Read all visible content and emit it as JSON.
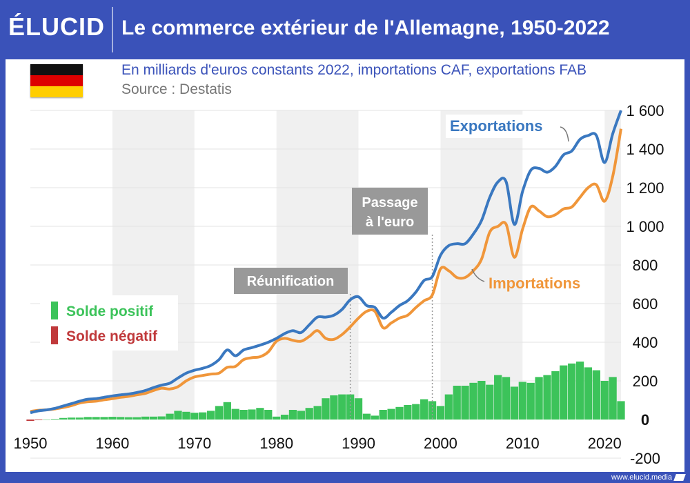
{
  "header": {
    "logo": "ÉLUCID",
    "title": "Le commerce extérieur de l'Allemagne, 1950-2022"
  },
  "subtitle": "En milliards d'euros constants 2022, importations CAF, exportations FAB",
  "source": "Source : Destatis",
  "footer": "www.elucid.media",
  "flag": {
    "colors": [
      "#111111",
      "#dd0000",
      "#ffce00"
    ]
  },
  "colors": {
    "exports": "#3a78c0",
    "imports": "#f0963a",
    "positive": "#3cc35a",
    "negative": "#c0393b",
    "band": "#f0f0f0",
    "annotation": "#999999"
  },
  "chart_data": {
    "type": "line",
    "title": "Le commerce extérieur de l'Allemagne, 1950-2022",
    "x_range": [
      1950,
      2022
    ],
    "ylim": [
      -200,
      1600
    ],
    "y_ticks": [
      "1 600",
      "1 400",
      "1 200",
      "1 000",
      "800",
      "600",
      "400",
      "200",
      "0",
      "-200"
    ],
    "x_ticks": [
      "1950",
      "1960",
      "1970",
      "1980",
      "1990",
      "2000",
      "2010",
      "2020"
    ],
    "years": [
      1950,
      1951,
      1952,
      1953,
      1954,
      1955,
      1956,
      1957,
      1958,
      1959,
      1960,
      1961,
      1962,
      1963,
      1964,
      1965,
      1966,
      1967,
      1968,
      1969,
      1970,
      1971,
      1972,
      1973,
      1974,
      1975,
      1976,
      1977,
      1978,
      1979,
      1980,
      1981,
      1982,
      1983,
      1984,
      1985,
      1986,
      1987,
      1988,
      1989,
      1990,
      1991,
      1992,
      1993,
      1994,
      1995,
      1996,
      1997,
      1998,
      1999,
      2000,
      2001,
      2002,
      2003,
      2004,
      2005,
      2006,
      2007,
      2008,
      2009,
      2010,
      2011,
      2012,
      2013,
      2014,
      2015,
      2016,
      2017,
      2018,
      2019,
      2020,
      2021,
      2022
    ],
    "series": [
      {
        "name": "Exportations",
        "values": [
          35,
          45,
          50,
          58,
          70,
          82,
          95,
          105,
          108,
          115,
          122,
          128,
          132,
          140,
          150,
          165,
          178,
          188,
          215,
          240,
          255,
          265,
          280,
          310,
          360,
          330,
          360,
          372,
          385,
          400,
          420,
          445,
          460,
          450,
          490,
          530,
          530,
          540,
          570,
          620,
          635,
          590,
          580,
          525,
          555,
          590,
          615,
          660,
          720,
          740,
          850,
          900,
          910,
          910,
          960,
          1030,
          1150,
          1230,
          1230,
          1010,
          1180,
          1290,
          1300,
          1280,
          1310,
          1370,
          1390,
          1450,
          1470,
          1470,
          1330,
          1480,
          1600
        ]
      },
      {
        "name": "Importations",
        "values": [
          42,
          48,
          50,
          55,
          62,
          72,
          85,
          92,
          95,
          102,
          108,
          115,
          120,
          128,
          135,
          150,
          162,
          158,
          170,
          200,
          220,
          228,
          235,
          240,
          270,
          275,
          310,
          320,
          325,
          350,
          405,
          420,
          410,
          405,
          430,
          460,
          420,
          415,
          440,
          480,
          525,
          560,
          560,
          475,
          500,
          525,
          540,
          580,
          615,
          645,
          780,
          770,
          735,
          735,
          770,
          830,
          970,
          1000,
          1010,
          840,
          985,
          1100,
          1080,
          1050,
          1060,
          1090,
          1100,
          1150,
          1200,
          1215,
          1130,
          1260,
          1505
        ]
      },
      {
        "name": "Solde",
        "values": [
          -7,
          -3,
          0,
          3,
          8,
          10,
          10,
          13,
          13,
          13,
          14,
          13,
          12,
          12,
          15,
          15,
          16,
          30,
          45,
          40,
          35,
          37,
          45,
          70,
          90,
          55,
          50,
          52,
          60,
          50,
          15,
          25,
          50,
          45,
          60,
          70,
          110,
          125,
          130,
          130,
          110,
          30,
          20,
          50,
          55,
          65,
          75,
          80,
          105,
          95,
          70,
          130,
          175,
          175,
          190,
          200,
          180,
          230,
          220,
          170,
          195,
          190,
          220,
          230,
          250,
          280,
          290,
          300,
          270,
          255,
          200,
          220,
          95
        ]
      }
    ],
    "legend": [
      {
        "label": "Solde positif"
      },
      {
        "label": "Solde négatif"
      }
    ],
    "annotations": [
      {
        "label": "Réunification",
        "year": 1989
      },
      {
        "label1": "Passage",
        "label2": "à l'euro",
        "year": 1999
      }
    ]
  }
}
